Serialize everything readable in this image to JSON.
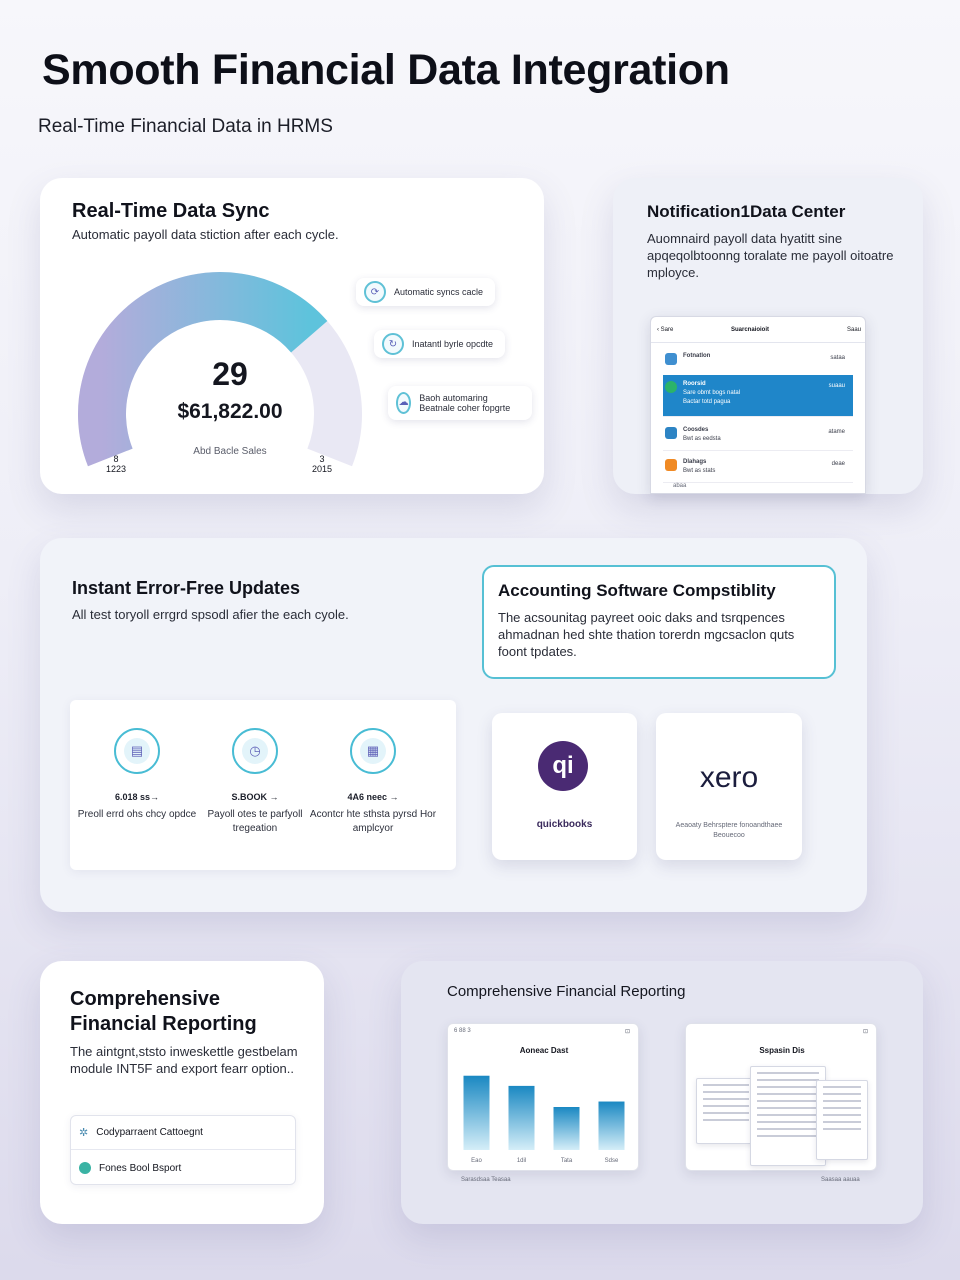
{
  "header": {
    "title": "Smooth Financial Data Integration",
    "subtitle": "Real-Time Financial Data in HRMS"
  },
  "sync": {
    "title": "Real-Time Data Sync",
    "desc": "Automatic payoll data stiction after each cycle.",
    "count": "29",
    "amount": "$61,822.00",
    "caption": "Abd Bacle Sales",
    "left_tick_top": "8",
    "left_tick_bottom": "1223",
    "right_tick_top": "3",
    "right_tick_bottom": "2015",
    "gauge_fill": 0.72,
    "legend": [
      {
        "icon": "sync-icon",
        "label": "Automatic syncs cacle"
      },
      {
        "icon": "refresh-icon",
        "label": "Inatantl byrle opcdte"
      },
      {
        "icon": "cloud-icon",
        "label": "Baoh automaring Beatnale coher fopgrte"
      }
    ],
    "colors": {
      "gauge_start": "#b3acdb",
      "gauge_end": "#5ec3dc"
    }
  },
  "notify": {
    "title": "Notification1Data Center",
    "desc": "Auomnaird payoll data hyatitt sine apqeqolbtoonng toralate me payoll oitoatre mployce.",
    "phone": {
      "back": "Sare",
      "title": "Suarcnaioioit",
      "action": "Saau",
      "items": [
        {
          "icon": "chart-icon",
          "title": "Fotnatlon",
          "sub": "",
          "right": "sataa"
        },
        {
          "icon": "dollar-icon",
          "title": "Roorsid",
          "sub": "Sare obmt bogs natal",
          "sub2": "Bactar totd pagua",
          "right": "suaau"
        },
        {
          "icon": "calendar-icon",
          "title": "Coosdes",
          "sub": "Bwt as eedsta",
          "right": "atame"
        },
        {
          "icon": "doc-icon",
          "title": "Dlahags",
          "sub": "Bwt as stats",
          "right": "deae"
        }
      ],
      "footer": "abaa"
    }
  },
  "updates": {
    "title": "Instant Error-Free Updates",
    "desc": "All test toryoll errgrd spsodl afier the each cyole.",
    "features": [
      {
        "icon": "payroll-icon",
        "value": "6.018 ss→",
        "label": "Preoll errd ohs chcy opdce"
      },
      {
        "icon": "clock-icon",
        "value": "S.BOOK →",
        "label": "Payoll otes te parfyoll tregeation"
      },
      {
        "icon": "document-icon",
        "value": "4A6 neec →",
        "label": "Acontcr hte sthsta pyrsd Hor amplcyor"
      }
    ]
  },
  "compat": {
    "title": "Accounting Software Compstiblity",
    "desc": "The acsounitag payreet ooic daks and tsrqpences ahmadnan hed shte thation torerdn mgcsaclon quts foont tpdates.",
    "qb_logo": "qi",
    "qb_name": "quickbooks",
    "xero_logo": "xero",
    "xero_desc": "Aeaoaty Behrsptere fonoandthaee Beouecoo",
    "colors": {
      "quickbooks": "#4a2a73",
      "xero": "#1b1d3d",
      "accent": "#48bcd4"
    }
  },
  "reporting": {
    "title_line1": "Comprehensive",
    "title_line2": "Financial Reporting",
    "desc": "The aintgnt,ststo inweskettle gestbelam module INT5F and export fearr option..",
    "options": [
      {
        "icon": "gear-icon",
        "label": "Codyparraent Cattoegnt"
      },
      {
        "icon": "excel-icon",
        "label": "Fones Bool Bsport"
      }
    ]
  },
  "report_panel": {
    "title": "Comprehensive Financial Reporting",
    "bar_card": {
      "top_left": "6 88 3",
      "title": "Aoneac Dast",
      "footer": "Sarasdsaa Teasaa",
      "labels": [
        "Eao",
        "1dil",
        "Tata",
        "Sdse"
      ]
    },
    "sheet_card": {
      "title": "Sspasin Dis",
      "footer": "Saasaa aauaa"
    }
  },
  "chart_data": {
    "type": "bar",
    "categories": [
      "Eao",
      "1dil",
      "Tata",
      "Sdse"
    ],
    "values": [
      95,
      82,
      55,
      62
    ],
    "title": "Aoneac Dast",
    "xlabel": "",
    "ylabel": "",
    "ylim": [
      0,
      110
    ]
  }
}
